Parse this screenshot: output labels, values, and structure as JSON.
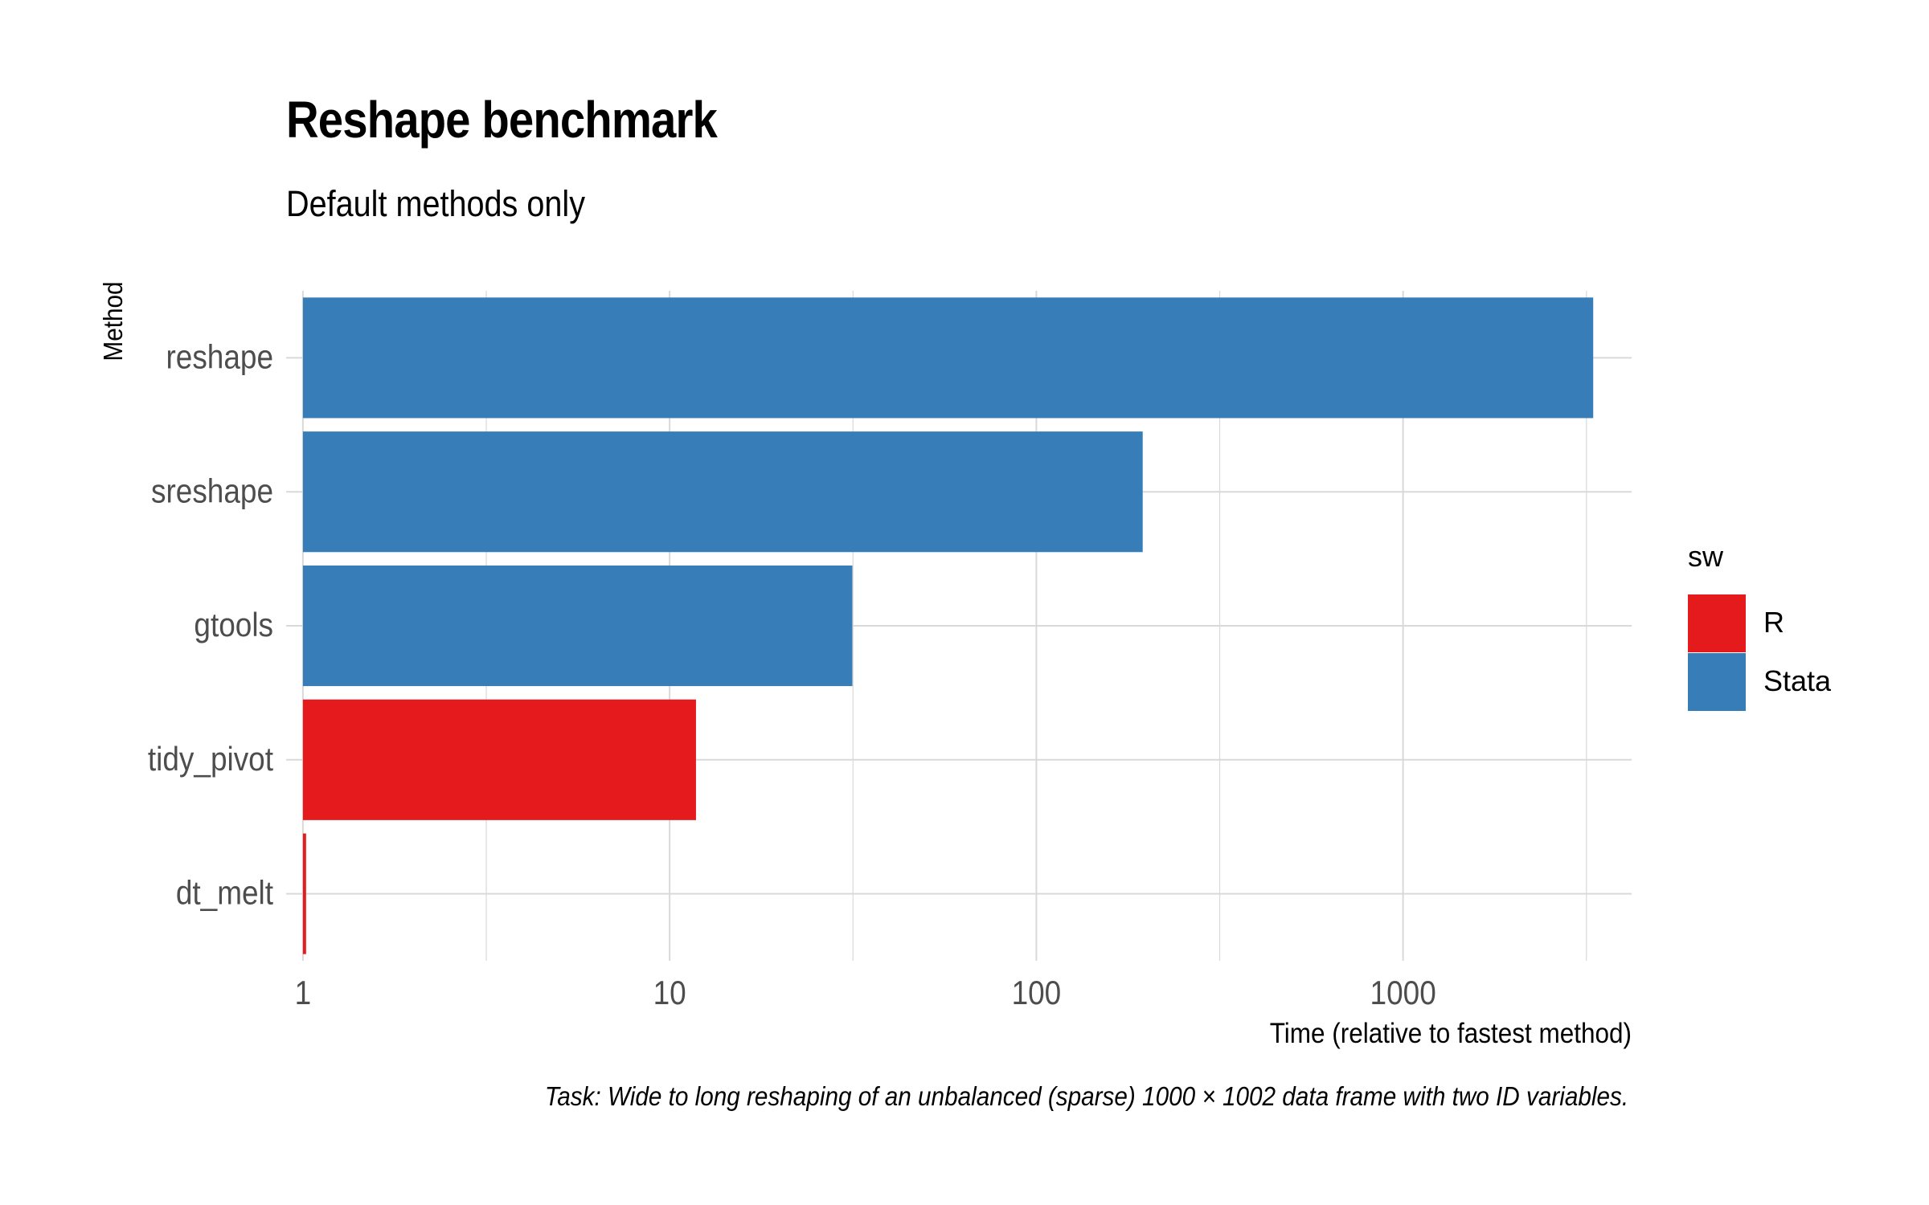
{
  "chart_data": {
    "type": "bar",
    "orientation": "horizontal",
    "title": "Reshape benchmark",
    "subtitle": "Default methods only",
    "caption": "Task: Wide to long reshaping of an unbalanced (sparse) 1000 × 1002 data frame with two ID variables.",
    "xlabel": "Time (relative to fastest method)",
    "ylabel": "Method",
    "x_scale": "log10",
    "xlim": [
      0.9,
      4200
    ],
    "x_ticks": [
      1,
      10,
      100,
      1000
    ],
    "x_tick_labels": [
      "1",
      "10",
      "100",
      "1000"
    ],
    "grid": true,
    "legend_position": "right",
    "legend_title": "sw",
    "legend": [
      {
        "name": "R",
        "color": "#E41A1C"
      },
      {
        "name": "Stata",
        "color": "#377EB8"
      }
    ],
    "categories": [
      "reshape",
      "sreshape",
      "gtools",
      "tidy_pivot",
      "dt_melt"
    ],
    "values": [
      3300,
      195,
      31.5,
      11.8,
      1.02
    ],
    "groups": [
      "Stata",
      "Stata",
      "Stata",
      "R",
      "R"
    ]
  }
}
